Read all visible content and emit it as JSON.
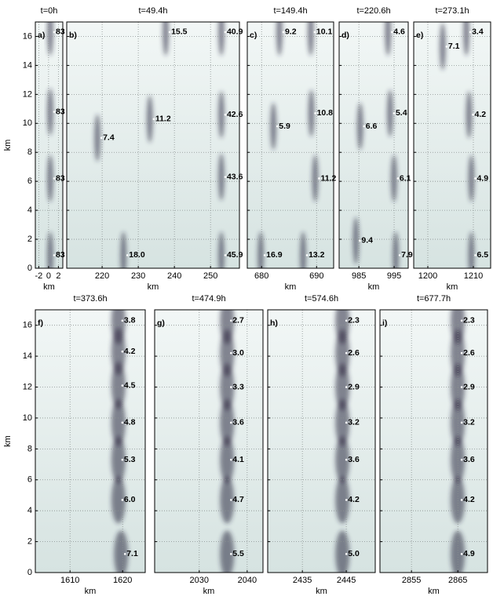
{
  "chart_data": [
    {
      "type": "heatmap",
      "title": "t=0h",
      "panel_label": "a)",
      "xlabel": "km",
      "ylabel": "km",
      "xlim": [
        -2.7,
        2.9
      ],
      "xticks": [
        -2,
        0,
        2
      ],
      "ylim": [
        0,
        17
      ],
      "yticks": [
        0,
        2,
        4,
        6,
        8,
        10,
        12,
        14,
        16
      ],
      "grid": true,
      "annotations": [
        {
          "text": "83",
          "x": 1.3,
          "y": 16.3
        },
        {
          "text": "83",
          "x": 1.3,
          "y": 10.8
        },
        {
          "text": "83",
          "x": 1.3,
          "y": 6.2
        },
        {
          "text": "83",
          "x": 1.3,
          "y": 0.9
        }
      ]
    },
    {
      "type": "heatmap",
      "title": "t=49.4h",
      "panel_label": "b)",
      "xlabel": "km",
      "xlim": [
        210.2,
        258
      ],
      "xticks": [
        220,
        230,
        240,
        250
      ],
      "ylim": [
        0,
        17
      ],
      "yticks": [
        0,
        2,
        4,
        6,
        8,
        10,
        12,
        14,
        16
      ],
      "grid": true,
      "annotations": [
        {
          "text": "15.5",
          "x": 238.9,
          "y": 16.3
        },
        {
          "text": "40.9",
          "x": 254.3,
          "y": 16.3
        },
        {
          "text": "42.6",
          "x": 254.3,
          "y": 10.6
        },
        {
          "text": "11.2",
          "x": 234.5,
          "y": 10.3
        },
        {
          "text": "7.4",
          "x": 220,
          "y": 9
        },
        {
          "text": "43.6",
          "x": 254.3,
          "y": 6.3
        },
        {
          "text": "18.0",
          "x": 227.2,
          "y": 0.9
        },
        {
          "text": "45.9",
          "x": 254.3,
          "y": 0.9
        }
      ]
    },
    {
      "type": "heatmap",
      "title": "t=149.4h",
      "panel_label": "c)",
      "xlabel": "km",
      "xlim": [
        677.4,
        693.1
      ],
      "xticks": [
        680,
        690
      ],
      "ylim": [
        0,
        17
      ],
      "yticks": [
        0,
        2,
        4,
        6,
        8,
        10,
        12,
        14,
        16
      ],
      "grid": true,
      "annotations": [
        {
          "text": "9.2",
          "x": 684.1,
          "y": 16.3
        },
        {
          "text": "10.1",
          "x": 689.8,
          "y": 16.3
        },
        {
          "text": "10.8",
          "x": 689.9,
          "y": 10.7
        },
        {
          "text": "5.9",
          "x": 683,
          "y": 9.8
        },
        {
          "text": "11.2",
          "x": 690.6,
          "y": 6.2
        },
        {
          "text": "16.9",
          "x": 680.7,
          "y": 0.9
        },
        {
          "text": "13.2",
          "x": 688.4,
          "y": 0.9
        }
      ]
    },
    {
      "type": "heatmap",
      "title": "t=220.6h",
      "panel_label": "d)",
      "xlabel": "km",
      "xlim": [
        979.4,
        999
      ],
      "xticks": [
        985,
        995
      ],
      "ylim": [
        0,
        17
      ],
      "yticks": [
        0,
        2,
        4,
        6,
        8,
        10,
        12,
        14,
        16
      ],
      "grid": true,
      "annotations": [
        {
          "text": "4.6",
          "x": 994.6,
          "y": 16.3
        },
        {
          "text": "5.4",
          "x": 995.2,
          "y": 10.7
        },
        {
          "text": "6.6",
          "x": 986.7,
          "y": 9.8
        },
        {
          "text": "6.1",
          "x": 996.3,
          "y": 6.2
        },
        {
          "text": "9.4",
          "x": 985.5,
          "y": 1.9
        },
        {
          "text": "7.9",
          "x": 996.8,
          "y": 0.9
        }
      ]
    },
    {
      "type": "heatmap",
      "title": "t=273.1h",
      "panel_label": "e)",
      "xlabel": "km",
      "xlim": [
        1196.9,
        1213.8
      ],
      "xticks": [
        1200,
        1210
      ],
      "ylim": [
        0,
        17
      ],
      "yticks": [
        0,
        2,
        4,
        6,
        8,
        10,
        12,
        14,
        16
      ],
      "grid": true,
      "annotations": [
        {
          "text": "3.4",
          "x": 1209.5,
          "y": 16.3
        },
        {
          "text": "7.1",
          "x": 1204.3,
          "y": 15.3
        },
        {
          "text": "4.2",
          "x": 1210.1,
          "y": 10.6
        },
        {
          "text": "4.9",
          "x": 1210.6,
          "y": 6.2
        },
        {
          "text": "6.5",
          "x": 1210.6,
          "y": 0.9
        }
      ]
    },
    {
      "type": "heatmap",
      "title": "t=373.6h",
      "panel_label": "f)",
      "xlabel": "km",
      "ylabel": "km",
      "xlim": [
        1603.4,
        1624.3
      ],
      "xticks": [
        1610,
        1620
      ],
      "ylim": [
        0,
        17
      ],
      "yticks": [
        0,
        2,
        4,
        6,
        8,
        10,
        12,
        14,
        16
      ],
      "grid": true,
      "annotations": [
        {
          "text": "3.8",
          "x": 1620.1,
          "y": 16.3
        },
        {
          "text": "4.2",
          "x": 1620.1,
          "y": 14.3
        },
        {
          "text": "4.5",
          "x": 1620.1,
          "y": 12.1
        },
        {
          "text": "4.8",
          "x": 1620.1,
          "y": 9.7
        },
        {
          "text": "5.3",
          "x": 1620.1,
          "y": 7.3
        },
        {
          "text": "6.0",
          "x": 1620.1,
          "y": 4.7
        },
        {
          "text": "7.1",
          "x": 1620.6,
          "y": 1.2
        }
      ]
    },
    {
      "type": "heatmap",
      "title": "t=474.9h",
      "panel_label": "g)",
      "xlabel": "km",
      "xlim": [
        2020.7,
        2043.3
      ],
      "xticks": [
        2030,
        2040
      ],
      "ylim": [
        0,
        17
      ],
      "yticks": [
        0,
        2,
        4,
        6,
        8,
        10,
        12,
        14,
        16
      ],
      "grid": true,
      "annotations": [
        {
          "text": "2.7",
          "x": 2036.8,
          "y": 16.3
        },
        {
          "text": "3.0",
          "x": 2036.8,
          "y": 14.2
        },
        {
          "text": "3.3",
          "x": 2036.8,
          "y": 12
        },
        {
          "text": "3.6",
          "x": 2036.8,
          "y": 9.7
        },
        {
          "text": "4.1",
          "x": 2036.8,
          "y": 7.3
        },
        {
          "text": "4.7",
          "x": 2036.8,
          "y": 4.7
        },
        {
          "text": "5.5",
          "x": 2036.8,
          "y": 1.2
        }
      ]
    },
    {
      "type": "heatmap",
      "title": "t=574.6h",
      "panel_label": "h)",
      "xlabel": "km",
      "xlim": [
        2427.1,
        2451.6
      ],
      "xticks": [
        2435,
        2445
      ],
      "ylim": [
        0,
        17
      ],
      "yticks": [
        0,
        2,
        4,
        6,
        8,
        10,
        12,
        14,
        16
      ],
      "grid": true,
      "annotations": [
        {
          "text": "2.3",
          "x": 2445.2,
          "y": 16.3
        },
        {
          "text": "2.6",
          "x": 2445.2,
          "y": 14.2
        },
        {
          "text": "2.9",
          "x": 2445.2,
          "y": 12
        },
        {
          "text": "3.2",
          "x": 2445.2,
          "y": 9.7
        },
        {
          "text": "3.6",
          "x": 2445.2,
          "y": 7.3
        },
        {
          "text": "4.2",
          "x": 2445.2,
          "y": 4.7
        },
        {
          "text": "5.0",
          "x": 2445.2,
          "y": 1.2
        }
      ]
    },
    {
      "type": "heatmap",
      "title": "t=677.7h",
      "panel_label": "i)",
      "xlabel": "km",
      "xlim": [
        2848.2,
        2871.4
      ],
      "xticks": [
        2855,
        2865
      ],
      "ylim": [
        0,
        17
      ],
      "yticks": [
        0,
        2,
        4,
        6,
        8,
        10,
        12,
        14,
        16
      ],
      "grid": true,
      "annotations": [
        {
          "text": "2.3",
          "x": 2866,
          "y": 16.3
        },
        {
          "text": "2.6",
          "x": 2866,
          "y": 14.2
        },
        {
          "text": "2.9",
          "x": 2866,
          "y": 12
        },
        {
          "text": "3.2",
          "x": 2866,
          "y": 9.7
        },
        {
          "text": "3.6",
          "x": 2866,
          "y": 7.3
        },
        {
          "text": "4.2",
          "x": 2866,
          "y": 4.7
        },
        {
          "text": "4.9",
          "x": 2866,
          "y": 1.2
        }
      ]
    }
  ]
}
